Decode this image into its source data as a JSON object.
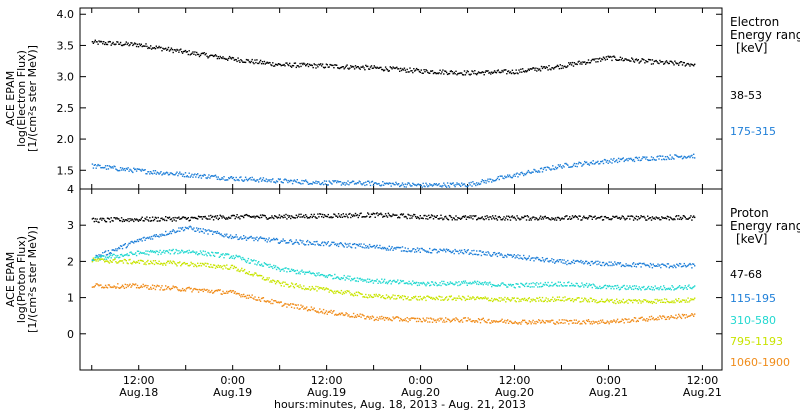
{
  "chart_data": [
    {
      "type": "scatter",
      "panel": "electron",
      "ylabel_lines": [
        "ACE EPAM",
        "log(Electron Flux)",
        "[1/(cm²s ster MeV)]"
      ],
      "ylim": [
        1.2,
        4.1
      ],
      "yticks": [
        1.5,
        2.0,
        2.5,
        3.0,
        3.5,
        4.0
      ],
      "ytick_labels": [
        "1.5",
        "2.0",
        "2.5",
        "3.0",
        "3.5",
        "4.0"
      ],
      "x_hours": [
        0,
        6,
        12,
        18,
        24,
        30,
        36,
        42,
        48,
        54,
        60,
        66,
        72,
        78
      ],
      "series": [
        {
          "name": "38-53",
          "color": "#000000",
          "values": [
            3.56,
            3.52,
            3.4,
            3.29,
            3.2,
            3.18,
            3.15,
            3.1,
            3.07,
            3.09,
            3.18,
            3.31,
            3.24,
            3.2
          ]
        },
        {
          "name": "175-315",
          "color": "#1f7fd8",
          "values": [
            1.58,
            1.5,
            1.44,
            1.38,
            1.34,
            1.31,
            1.3,
            1.27,
            1.28,
            1.43,
            1.58,
            1.66,
            1.71,
            1.75
          ]
        }
      ],
      "legend": {
        "title_lines": [
          "Electron",
          "Energy ranges",
          "[keV]"
        ],
        "position": "right"
      }
    },
    {
      "type": "scatter",
      "panel": "proton",
      "ylabel_lines": [
        "ACE EPAM",
        "log(Proton Flux)",
        "[1/(cm²s ster MeV)]"
      ],
      "ylim": [
        -1,
        4
      ],
      "yticks": [
        0,
        1,
        2,
        3,
        4
      ],
      "ytick_labels": [
        "0",
        "1",
        "2",
        "3",
        "4"
      ],
      "x_hours": [
        0,
        6,
        12,
        18,
        24,
        30,
        36,
        42,
        48,
        54,
        60,
        66,
        72,
        78
      ],
      "series": [
        {
          "name": "47-68",
          "color": "#000000",
          "values": [
            3.15,
            3.18,
            3.2,
            3.25,
            3.25,
            3.28,
            3.3,
            3.25,
            3.22,
            3.22,
            3.22,
            3.22,
            3.22,
            3.22
          ]
        },
        {
          "name": "115-195",
          "color": "#1f7fd8",
          "values": [
            2.1,
            2.6,
            2.95,
            2.7,
            2.58,
            2.5,
            2.42,
            2.32,
            2.28,
            2.15,
            2.0,
            1.95,
            1.9,
            1.9
          ]
        },
        {
          "name": "310-580",
          "color": "#22d8d0",
          "values": [
            2.08,
            2.25,
            2.3,
            2.15,
            1.8,
            1.62,
            1.48,
            1.4,
            1.42,
            1.35,
            1.4,
            1.3,
            1.28,
            1.32
          ]
        },
        {
          "name": "795-1193",
          "color": "#c8e400",
          "values": [
            2.05,
            2.0,
            1.95,
            1.85,
            1.4,
            1.22,
            1.05,
            1.0,
            1.0,
            0.95,
            0.98,
            0.92,
            0.92,
            0.96
          ]
        },
        {
          "name": "1060-1900",
          "color": "#f08c1a",
          "values": [
            1.35,
            1.33,
            1.25,
            1.15,
            0.85,
            0.62,
            0.45,
            0.4,
            0.4,
            0.35,
            0.35,
            0.35,
            0.45,
            0.55
          ]
        }
      ],
      "legend": {
        "title_lines": [
          "Proton",
          "Energy ranges",
          "[keV]"
        ],
        "position": "right"
      }
    }
  ],
  "x_axis": {
    "ticks": [
      {
        "hour": 6,
        "time": "12:00",
        "date": "Aug.18"
      },
      {
        "hour": 18,
        "time": "0:00",
        "date": "Aug.19"
      },
      {
        "hour": 30,
        "time": "12:00",
        "date": "Aug.19"
      },
      {
        "hour": 42,
        "time": "0:00",
        "date": "Aug.20"
      },
      {
        "hour": 54,
        "time": "12:00",
        "date": "Aug.20"
      },
      {
        "hour": 66,
        "time": "0:00",
        "date": "Aug.21"
      },
      {
        "hour": 78,
        "time": "12:00",
        "date": "Aug.21"
      }
    ],
    "xlabel": "hours:minutes, Aug. 18, 2013 - Aug. 21, 2013"
  }
}
